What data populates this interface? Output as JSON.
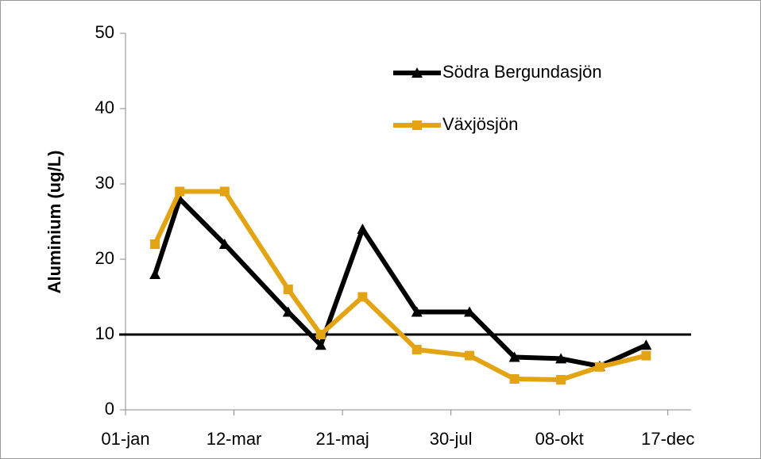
{
  "chart_data": {
    "type": "line",
    "y_label": "Aluminium (ug/L)",
    "x": [
      19,
      35,
      64,
      105,
      126,
      153,
      188,
      222,
      251,
      281,
      306,
      336
    ],
    "series": [
      {
        "name": "Södra Bergundasjön",
        "color": "#000000",
        "marker": "triangle",
        "values": [
          18,
          28,
          22,
          13,
          8.6,
          24,
          13,
          13,
          7,
          6.8,
          5.8,
          8.6
        ]
      },
      {
        "name": "Växjösjön",
        "color": "#E3A414",
        "marker": "square",
        "values": [
          22,
          29,
          29,
          16,
          10,
          15,
          8,
          7.2,
          4.1,
          4,
          5.7,
          7.2
        ]
      }
    ],
    "reference_line": 10,
    "xlim": [
      0,
      365
    ],
    "xticks": [
      {
        "value": 0,
        "label": "01-jan"
      },
      {
        "value": 70,
        "label": "12-mar"
      },
      {
        "value": 140,
        "label": "21-maj"
      },
      {
        "value": 210,
        "label": "30-jul"
      },
      {
        "value": 280,
        "label": "08-okt"
      },
      {
        "value": 350,
        "label": "17-dec"
      }
    ],
    "ylim": [
      0,
      50
    ],
    "yticks": [
      0,
      10,
      20,
      30,
      40,
      50
    ],
    "grid": false,
    "legend": "top-right"
  }
}
